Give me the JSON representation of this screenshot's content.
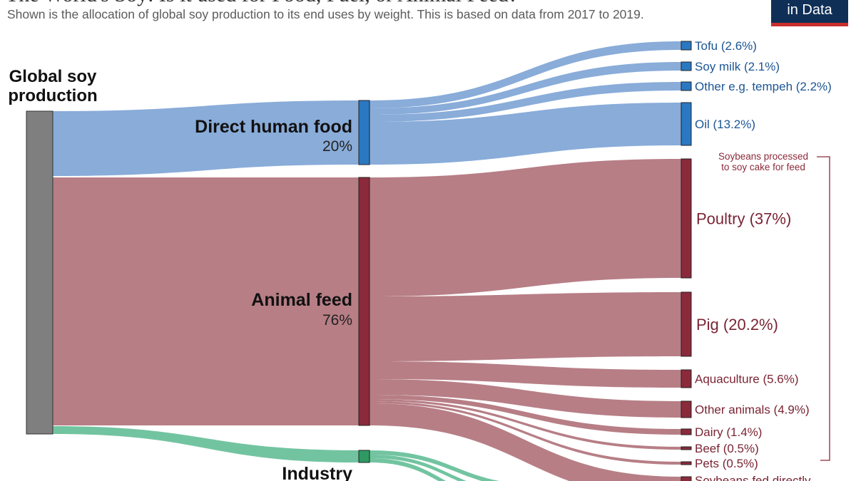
{
  "header": {
    "title": "The World's Soy: Is it used for Food, Fuel, or Animal Feed?",
    "subtitle": "Shown is the allocation of global soy production  to its end uses by weight. This is based on data from 2017 to 2019.",
    "logo_text": "in Data"
  },
  "colors": {
    "source_node": "#7f7f7f",
    "food": "#2a78c2",
    "food_flow": "#89acd9",
    "food_text": "#1c5593",
    "feed": "#8b2a3a",
    "feed_flow": "#b77e86",
    "feed_text": "#7a2433",
    "industry": "#2e9a62",
    "industry_flow": "#72c4a0",
    "bracket": "#8b2a3a"
  },
  "chart_data": {
    "type": "sankey",
    "source": {
      "label": "Global soy production"
    },
    "groups": [
      {
        "key": "food",
        "label": "Direct human food",
        "value_label": "20%"
      },
      {
        "key": "feed",
        "label": "Animal feed",
        "value_label": "76%"
      },
      {
        "key": "industry",
        "label": "Industry"
      }
    ],
    "targets": [
      {
        "group": "food",
        "label": "Tofu (2.6%)",
        "value": 2.6
      },
      {
        "group": "food",
        "label": "Soy milk (2.1%)",
        "value": 2.1
      },
      {
        "group": "food",
        "label": "Other e.g. tempeh (2.2%)",
        "value": 2.2
      },
      {
        "group": "food",
        "label": "Oil (13.2%)",
        "value": 13.2
      },
      {
        "group": "feed",
        "label": "Poultry (37%)",
        "value": 37
      },
      {
        "group": "feed",
        "label": "Pig (20.2%)",
        "value": 20.2
      },
      {
        "group": "feed",
        "label": "Aquaculture (5.6%)",
        "value": 5.6
      },
      {
        "group": "feed",
        "label": "Other animals (4.9%)",
        "value": 4.9
      },
      {
        "group": "feed",
        "label": "Dairy (1.4%)",
        "value": 1.4
      },
      {
        "group": "feed",
        "label": "Beef (0.5%)",
        "value": 0.5
      },
      {
        "group": "feed",
        "label": "Pets (0.5%)",
        "value": 0.5
      },
      {
        "group": "feed",
        "label": "Soybeans fed directly"
      }
    ],
    "annotation": {
      "label": "Soybeans processed to soy cake for feed",
      "lines": [
        "Soybeans processed",
        "to soy cake for feed"
      ]
    }
  }
}
